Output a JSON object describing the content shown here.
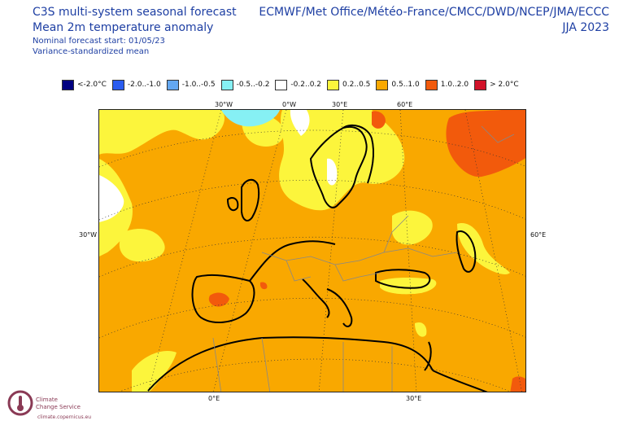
{
  "header": {
    "title_line1": "C3S multi-system seasonal forecast",
    "title_line2": "Mean 2m temperature anomaly",
    "forecast_start": "Nominal forecast start: 01/05/23",
    "method": "Variance-standardized mean",
    "models": "ECMWF/Met Office/Météo-France/CMCC/DWD/NCEP/JMA/ECCC",
    "period": "JJA 2023"
  },
  "legend": {
    "items": [
      {
        "label": "<-2.0°C",
        "color": "#000080"
      },
      {
        "label": "-2.0..-1.0",
        "color": "#2a5cf0"
      },
      {
        "label": "-1.0..-0.5",
        "color": "#64a8f2"
      },
      {
        "label": "-0.5..-0.2",
        "color": "#86f0f4"
      },
      {
        "label": "-0.2..0.2",
        "color": "#ffffff"
      },
      {
        "label": "0.2..0.5",
        "color": "#fcf53c"
      },
      {
        "label": "0.5..1.0",
        "color": "#f9a800"
      },
      {
        "label": "1.0..2.0",
        "color": "#f25a0c"
      },
      {
        "label": "> 2.0°C",
        "color": "#d2132a"
      }
    ]
  },
  "axes": {
    "top": [
      "30°W",
      "0°W",
      "30°E",
      "60°E"
    ],
    "left": "30°W",
    "right": "60°E",
    "bottom": [
      "0°E",
      "30°E"
    ]
  },
  "logo": {
    "name_line1": "Climate",
    "name_line2": "Change Service",
    "url": "climate.copernicus.eu"
  }
}
